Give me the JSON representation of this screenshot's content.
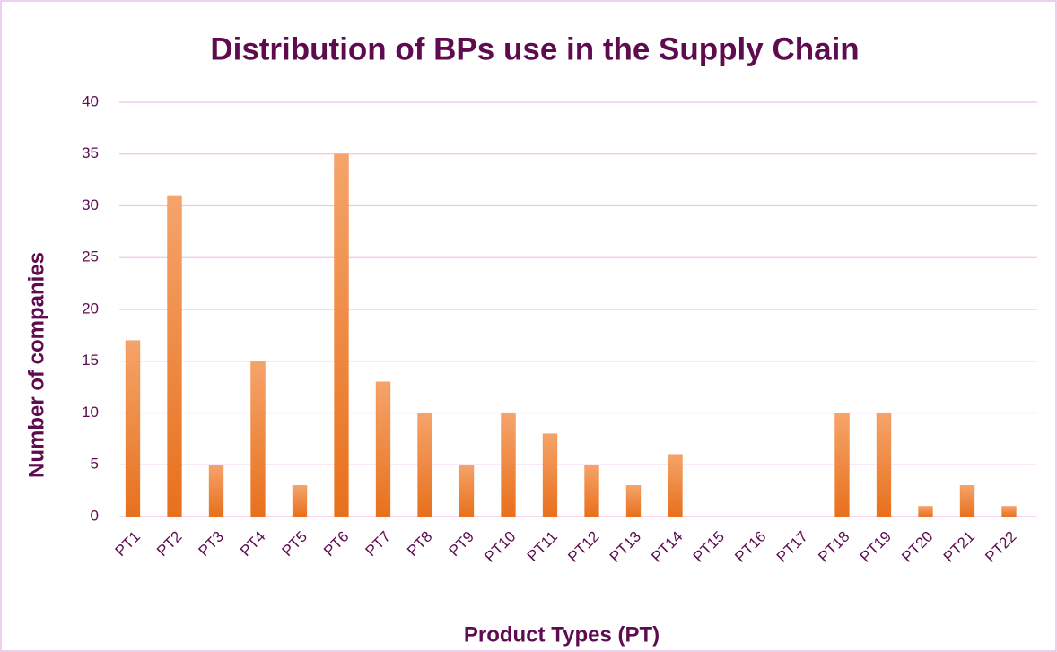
{
  "chart_data": {
    "type": "bar",
    "title": "Distribution of BPs use in the Supply Chain",
    "x_label": "Product Types (PT)",
    "y_label": "Number of companies",
    "categories": [
      "PT1",
      "PT2",
      "PT3",
      "PT4",
      "PT5",
      "PT6",
      "PT7",
      "PT8",
      "PT9",
      "PT10",
      "PT11",
      "PT12",
      "PT13",
      "PT14",
      "PT15",
      "PT16",
      "PT17",
      "PT18",
      "PT19",
      "PT20",
      "PT21",
      "PT22"
    ],
    "values": [
      17,
      31,
      5,
      15,
      3,
      35,
      13,
      10,
      5,
      10,
      8,
      5,
      3,
      6,
      0,
      0,
      0,
      10,
      10,
      1,
      3,
      1
    ],
    "color": "#ed7d31",
    "ylim": [
      0,
      40
    ],
    "yticks": [
      0,
      5,
      10,
      15,
      20,
      25,
      30,
      35,
      40
    ],
    "grid": true
  }
}
